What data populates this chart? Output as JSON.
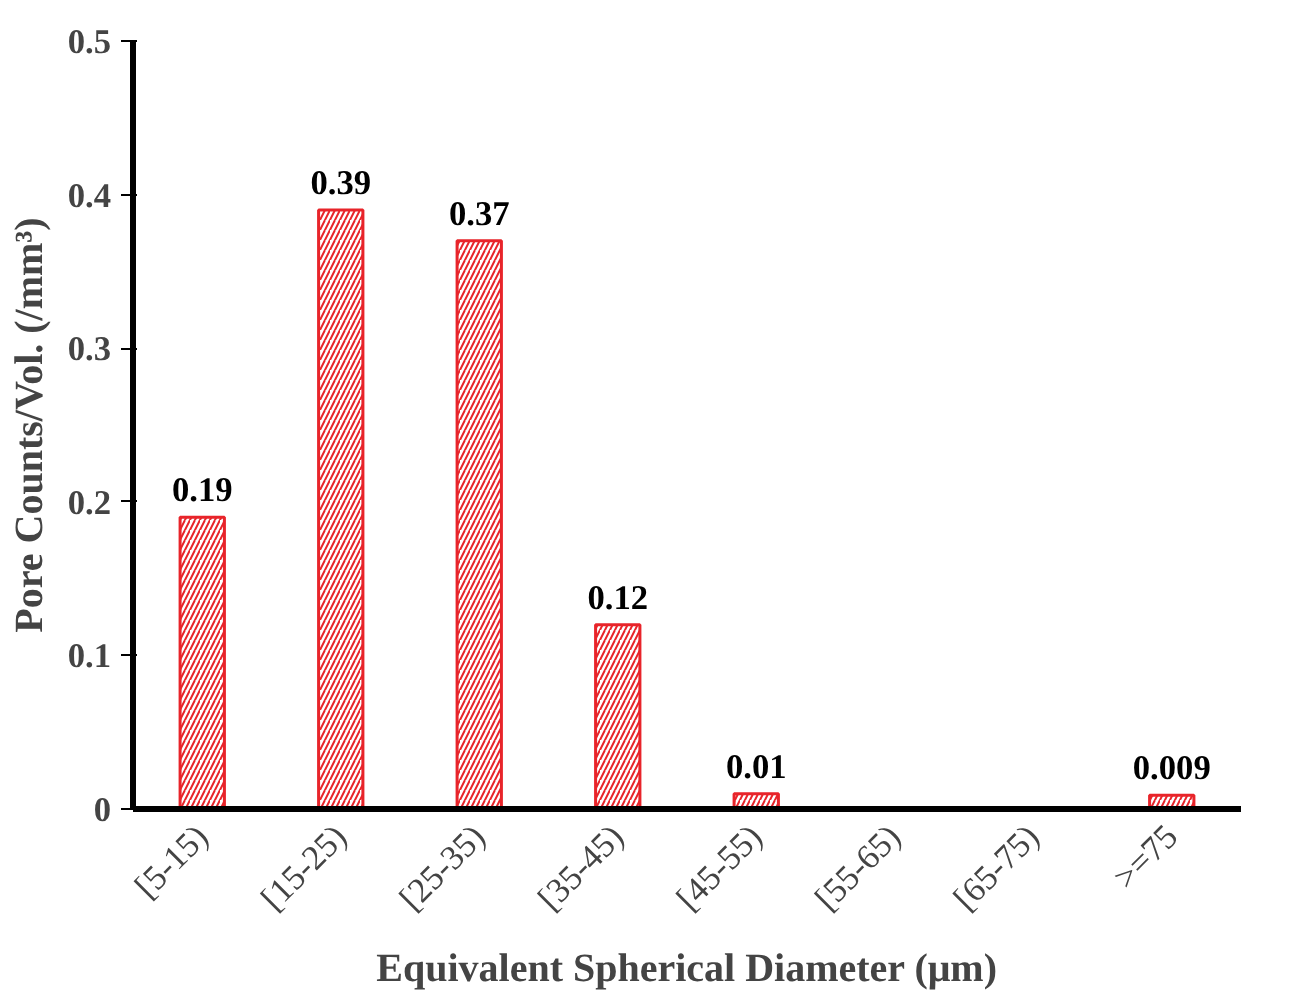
{
  "chart_data": {
    "type": "bar",
    "xlabel": "Equivalent Spherical Diameter (μm)",
    "ylabel": "Pore Counts/Vol. (/mm³)",
    "categories": [
      "[5-15)",
      "[15-25)",
      "[25-35)",
      "[35-45)",
      "[45-55)",
      "[55-65)",
      "[65-75)",
      ">=75"
    ],
    "values": [
      0.19,
      0.39,
      0.37,
      0.12,
      0.01,
      0,
      0,
      0.009
    ],
    "value_labels": [
      "0.19",
      "0.39",
      "0.37",
      "0.12",
      "0.01",
      null,
      null,
      "0.009"
    ],
    "color": "#e8242a",
    "ylim": [
      0,
      0.5
    ],
    "yticks": [
      0,
      0.1,
      0.2,
      0.3,
      0.4,
      0.5
    ],
    "grid": false
  }
}
